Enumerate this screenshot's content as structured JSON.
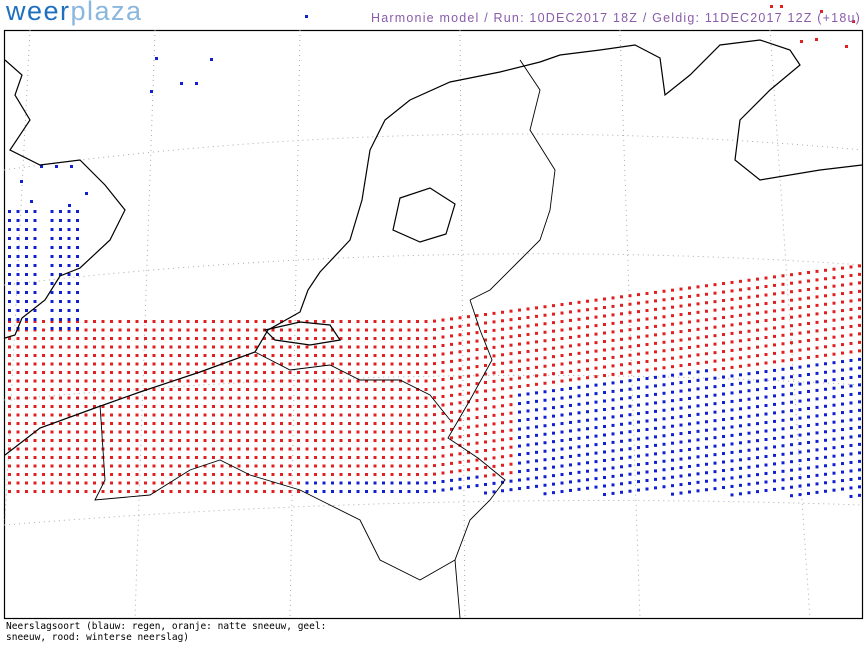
{
  "header": {
    "logo_part1": "weer",
    "logo_part2": "plaza",
    "title": "Harmonie model / Run: 10DEC2017 18Z / Geldig: 11DEC2017 12Z (+18u)"
  },
  "footer": {
    "lines": [
      "Neerslagsoort (blauw: regen, oranje: natte sneeuw, geel:",
      "sneeuw, rood: winterse neerslag)"
    ]
  }
}
